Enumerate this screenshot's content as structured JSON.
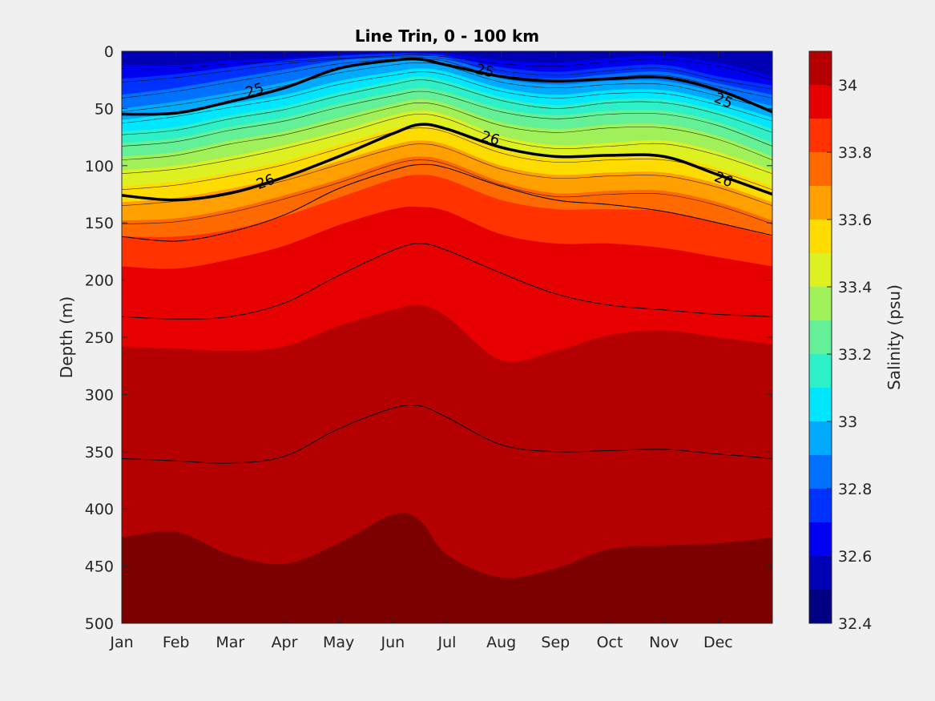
{
  "chart_data": {
    "type": "heatmap",
    "subtype": "filled-contour",
    "title": "Line Trin, 0 - 100 km",
    "xlabel": "",
    "ylabel": "Depth (m)",
    "colorbar_label": "Salinity (psu)",
    "x_ticks": [
      "Jan",
      "Feb",
      "Mar",
      "Apr",
      "May",
      "Jun",
      "Jul",
      "Aug",
      "Sep",
      "Oct",
      "Nov",
      "Dec"
    ],
    "x_range_months": [
      0,
      12
    ],
    "y_ticks": [
      "0",
      "50",
      "100",
      "150",
      "200",
      "250",
      "300",
      "350",
      "400",
      "450",
      "500"
    ],
    "ylim": [
      0,
      500
    ],
    "y_reversed": true,
    "colorbar_ticks": [
      "32.4",
      "32.6",
      "32.8",
      "33",
      "33.2",
      "33.4",
      "33.6",
      "33.8",
      "34"
    ],
    "colorbar_range": [
      32.4,
      34.1
    ],
    "color_levels": [
      {
        "min": 32.4,
        "max": 32.5,
        "color": "#000080"
      },
      {
        "min": 32.5,
        "max": 32.6,
        "color": "#0000b4"
      },
      {
        "min": 32.6,
        "max": 32.7,
        "color": "#0000f0"
      },
      {
        "min": 32.7,
        "max": 32.8,
        "color": "#0032ff"
      },
      {
        "min": 32.8,
        "max": 32.9,
        "color": "#0070ff"
      },
      {
        "min": 32.9,
        "max": 33.0,
        "color": "#00aaff"
      },
      {
        "min": 33.0,
        "max": 33.1,
        "color": "#00e6ff"
      },
      {
        "min": 33.1,
        "max": 33.2,
        "color": "#2ef0c8"
      },
      {
        "min": 33.2,
        "max": 33.3,
        "color": "#64f096"
      },
      {
        "min": 33.3,
        "max": 33.4,
        "color": "#a0f05a"
      },
      {
        "min": 33.4,
        "max": 33.5,
        "color": "#dcf022"
      },
      {
        "min": 33.5,
        "max": 33.6,
        "color": "#ffdc00"
      },
      {
        "min": 33.6,
        "max": 33.7,
        "color": "#ffa000"
      },
      {
        "min": 33.7,
        "max": 33.8,
        "color": "#ff6a00"
      },
      {
        "min": 33.8,
        "max": 33.9,
        "color": "#ff3200"
      },
      {
        "min": 33.9,
        "max": 34.0,
        "color": "#e60000"
      },
      {
        "min": 34.0,
        "max": 34.1,
        "color": "#b40000"
      },
      {
        "min": 34.1,
        "max": 34.2,
        "color": "#7d0000"
      }
    ],
    "isohaline_depths_m": {
      "months": [
        0,
        1,
        2,
        3,
        4,
        5,
        5.5,
        6,
        7,
        8,
        9,
        10,
        11,
        12
      ],
      "levels": [
        {
          "depth": [
            12,
            12,
            8,
            6,
            3,
            1,
            0,
            2,
            8,
            10,
            6,
            4,
            10,
            22
          ]
        },
        {
          "depth": [
            24,
            20,
            14,
            8,
            4,
            2,
            2,
            4,
            14,
            18,
            14,
            12,
            22,
            30
          ]
        },
        {
          "depth": [
            38,
            32,
            24,
            16,
            8,
            4,
            4,
            6,
            20,
            24,
            20,
            18,
            28,
            38
          ]
        },
        {
          "depth": [
            50,
            44,
            36,
            27,
            16,
            9,
            7,
            10,
            24,
            29,
            26,
            26,
            36,
            48
          ]
        },
        {
          "depth": [
            60,
            54,
            46,
            38,
            26,
            18,
            15,
            18,
            32,
            38,
            34,
            34,
            44,
            58
          ]
        },
        {
          "depth": [
            70,
            66,
            56,
            48,
            36,
            26,
            22,
            26,
            40,
            47,
            42,
            42,
            52,
            68
          ]
        },
        {
          "depth": [
            80,
            76,
            66,
            58,
            46,
            36,
            32,
            36,
            50,
            56,
            52,
            52,
            62,
            80
          ]
        },
        {
          "depth": [
            92,
            88,
            78,
            70,
            58,
            46,
            42,
            46,
            62,
            68,
            64,
            64,
            74,
            92
          ]
        },
        {
          "depth": [
            104,
            100,
            92,
            82,
            70,
            56,
            52,
            56,
            74,
            82,
            80,
            78,
            88,
            104
          ]
        },
        {
          "depth": [
            118,
            114,
            106,
            96,
            82,
            68,
            64,
            68,
            86,
            94,
            92,
            92,
            102,
            118
          ]
        },
        {
          "depth": [
            132,
            128,
            120,
            110,
            96,
            82,
            78,
            82,
            100,
            108,
            106,
            106,
            116,
            132
          ]
        },
        {
          "depth": [
            148,
            146,
            138,
            126,
            112,
            96,
            92,
            96,
            114,
            124,
            122,
            122,
            132,
            148
          ]
        },
        {
          "depth": [
            162,
            162,
            156,
            144,
            128,
            112,
            108,
            112,
            130,
            138,
            138,
            140,
            150,
            162
          ]
        },
        {
          "depth": [
            188,
            190,
            182,
            170,
            152,
            138,
            136,
            140,
            160,
            168,
            168,
            172,
            180,
            188
          ]
        },
        {
          "depth": [
            258,
            260,
            262,
            258,
            240,
            226,
            222,
            232,
            270,
            262,
            248,
            244,
            250,
            256
          ]
        },
        {
          "depth": [
            425,
            420,
            440,
            448,
            430,
            405,
            410,
            440,
            460,
            452,
            435,
            432,
            430,
            425
          ]
        }
      ]
    },
    "contours": [
      {
        "label": "25",
        "bold": true,
        "months": [
          0,
          1,
          2,
          3,
          4,
          5,
          5.5,
          6,
          7,
          8,
          9,
          10,
          11,
          12
        ],
        "depth": [
          55,
          54,
          44,
          32,
          15,
          8,
          7,
          12,
          22,
          26,
          24,
          23,
          34,
          53
        ]
      },
      {
        "label": "26",
        "bold": true,
        "months": [
          0,
          1,
          2,
          3,
          4,
          5,
          5.5,
          6,
          7,
          8,
          9,
          10,
          11,
          12
        ],
        "depth": [
          126,
          130,
          124,
          110,
          92,
          72,
          64,
          68,
          84,
          92,
          91,
          92,
          108,
          125
        ]
      },
      {
        "label": "",
        "bold": false,
        "months": [
          0,
          1,
          2,
          3,
          4,
          5,
          5.5,
          6,
          7,
          8,
          9,
          10,
          11,
          12
        ],
        "depth": [
          162,
          166,
          158,
          143,
          120,
          104,
          99,
          102,
          118,
          130,
          134,
          140,
          150,
          161
        ]
      },
      {
        "label": "",
        "bold": false,
        "months": [
          0,
          1,
          2,
          3,
          4,
          5,
          5.5,
          6,
          7,
          8,
          9,
          10,
          11,
          12
        ],
        "depth": [
          232,
          234,
          232,
          220,
          196,
          174,
          168,
          174,
          194,
          212,
          222,
          226,
          230,
          232
        ]
      },
      {
        "label": "",
        "bold": false,
        "months": [
          0,
          1,
          2,
          3,
          4,
          5,
          5.5,
          6,
          7,
          8,
          9,
          10,
          11,
          12
        ],
        "depth": [
          356,
          358,
          360,
          354,
          330,
          312,
          310,
          320,
          344,
          350,
          349,
          348,
          352,
          356
        ]
      }
    ],
    "contour_labels": [
      {
        "text": "25",
        "month": 2.45,
        "depth": 34,
        "angle": -18
      },
      {
        "text": "25",
        "month": 6.7,
        "depth": 17,
        "angle": 12
      },
      {
        "text": "25",
        "month": 11.1,
        "depth": 43,
        "angle": 22
      },
      {
        "text": "26",
        "month": 2.65,
        "depth": 114,
        "angle": -20
      },
      {
        "text": "26",
        "month": 6.8,
        "depth": 76,
        "angle": 16
      },
      {
        "text": "26",
        "month": 11.1,
        "depth": 112,
        "angle": 22
      }
    ],
    "grid": false,
    "legend": "none"
  }
}
